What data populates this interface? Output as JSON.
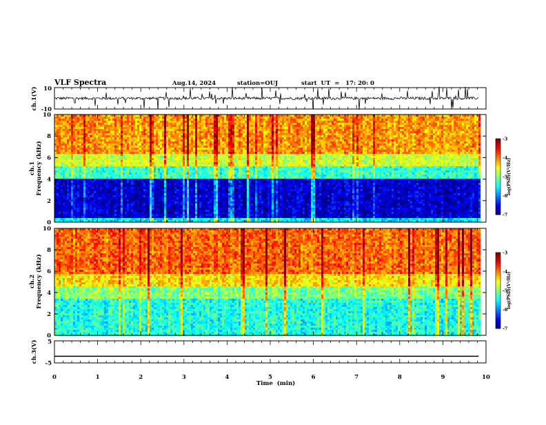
{
  "header": {
    "title": "VLF Spectra",
    "date": "Aug.14, 2024",
    "station": "station=OUJ",
    "start_ut": "start  UT  =   17: 20: 0"
  },
  "chart_data": [
    {
      "type": "line",
      "panel": "ch1-waveform",
      "ylabel": "ch.1(V)",
      "ylim": [
        -10,
        10
      ],
      "y_ticks": [
        "10",
        "-10"
      ],
      "x_range_min": [
        0,
        9.83
      ],
      "baseline_v": 0,
      "description_series": "noisy waveform with spikes"
    },
    {
      "type": "heatmap",
      "panel": "ch1-spectrogram",
      "ylabel": "ch.1\nFrequency  (kHz)",
      "ylim": [
        0,
        10
      ],
      "y_ticks": [
        "0",
        "2",
        "4",
        "6",
        "8",
        "10"
      ],
      "colorbar": {
        "label": "log(PSD)(V²/Hz)",
        "range": [
          -7,
          -3
        ],
        "ticks": [
          "-3",
          "-4",
          "-5",
          "-6",
          "-7"
        ]
      },
      "bands_khz_logpsd": [
        {
          "f": [
            0.0,
            0.4
          ],
          "v": -5.6
        },
        {
          "f": [
            0.4,
            4.2
          ],
          "v": -6.7
        },
        {
          "f": [
            4.2,
            5.2
          ],
          "v": -5.3
        },
        {
          "f": [
            5.2,
            6.5
          ],
          "v": -4.7
        },
        {
          "f": [
            6.5,
            10.0
          ],
          "v": -4.1
        }
      ]
    },
    {
      "type": "heatmap",
      "panel": "ch2-spectrogram",
      "ylabel": "ch.2\nFrequency  (kHz)",
      "ylim": [
        0,
        10
      ],
      "y_ticks": [
        "0",
        "2",
        "4",
        "6",
        "8",
        "10"
      ],
      "colorbar": {
        "label": "log(PSD)(V²/Hz)",
        "range": [
          -7,
          -3
        ],
        "ticks": [
          "-3",
          "-4",
          "-5",
          "-6",
          "-7"
        ]
      },
      "bands_khz_logpsd": [
        {
          "f": [
            0.0,
            3.6
          ],
          "v": -5.4
        },
        {
          "f": [
            3.6,
            4.6
          ],
          "v": -5.0
        },
        {
          "f": [
            4.6,
            5.8
          ],
          "v": -4.4
        },
        {
          "f": [
            5.8,
            10.0
          ],
          "v": -3.9
        }
      ]
    },
    {
      "type": "line",
      "panel": "ch3-waveform",
      "ylabel": "ch.3(V)",
      "ylim": [
        -5,
        5
      ],
      "y_ticks": [
        "5",
        "-5"
      ],
      "x": [
        0,
        9.83
      ],
      "y": [
        -2,
        -2
      ]
    }
  ],
  "x_axis": {
    "label": "Time  (min)",
    "range": [
      0,
      10
    ],
    "ticks": [
      "0",
      "1",
      "2",
      "3",
      "4",
      "5",
      "6",
      "7",
      "8",
      "9",
      "10"
    ]
  },
  "colors": {
    "low": "#00007f",
    "mid": "#00ff80",
    "high": "#ff2020"
  }
}
